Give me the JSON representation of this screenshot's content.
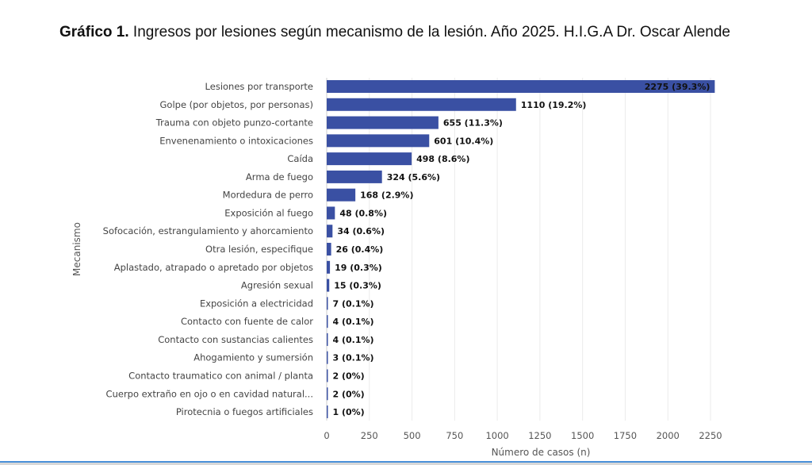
{
  "title": {
    "prefix": "Gráfico 1.",
    "text": " Ingresos por lesiones según mecanismo de la lesión. Año 2025. H.I.G.A Dr. Oscar Alende"
  },
  "chart_data": {
    "type": "bar",
    "orientation": "horizontal",
    "title": "Gráfico 1. Ingresos por lesiones según mecanismo de la lesión. Año 2025. H.I.G.A Dr. Oscar Alende",
    "xlabel": "Número de casos (n)",
    "ylabel": "Mecanismo",
    "xlim": [
      0,
      2275
    ],
    "xticks": [
      0,
      250,
      500,
      750,
      1000,
      1250,
      1500,
      1750,
      2000,
      2250
    ],
    "grid": true,
    "bar_color": "#3a50a3",
    "categories": [
      "Lesiones por transporte",
      "Golpe (por objetos, por personas)",
      "Trauma con objeto punzo-cortante",
      "Envenenamiento o intoxicaciones",
      "Caída",
      "Arma de fuego",
      "Mordedura de perro",
      "Exposición al fuego",
      "Sofocación, estrangulamiento y ahorcamiento",
      "Otra lesión, especifique",
      "Aplastado, atrapado o apretado por objetos",
      "Agresión sexual",
      "Exposición a electricidad",
      "Contacto con fuente de calor",
      "Contacto con sustancias calientes",
      "Ahogamiento y sumersión",
      "Contacto traumatico con animal / planta",
      "Cuerpo extraño en ojo o en cavidad natural...",
      "Pirotecnia o fuegos artificiales"
    ],
    "values": [
      2275,
      1110,
      655,
      601,
      498,
      324,
      168,
      48,
      34,
      26,
      19,
      15,
      7,
      4,
      4,
      3,
      2,
      2,
      1
    ],
    "data_labels": [
      "2275 (39.3%)",
      "1110 (19.2%)",
      "655 (11.3%)",
      "601 (10.4%)",
      "498 (8.6%)",
      "324 (5.6%)",
      "168 (2.9%)",
      "48 (0.8%)",
      "34 (0.6%)",
      "26 (0.4%)",
      "19 (0.3%)",
      "15 (0.3%)",
      "7 (0.1%)",
      "4 (0.1%)",
      "4 (0.1%)",
      "3 (0.1%)",
      "2 (0%)",
      "2 (0%)",
      "1 (0%)"
    ]
  }
}
